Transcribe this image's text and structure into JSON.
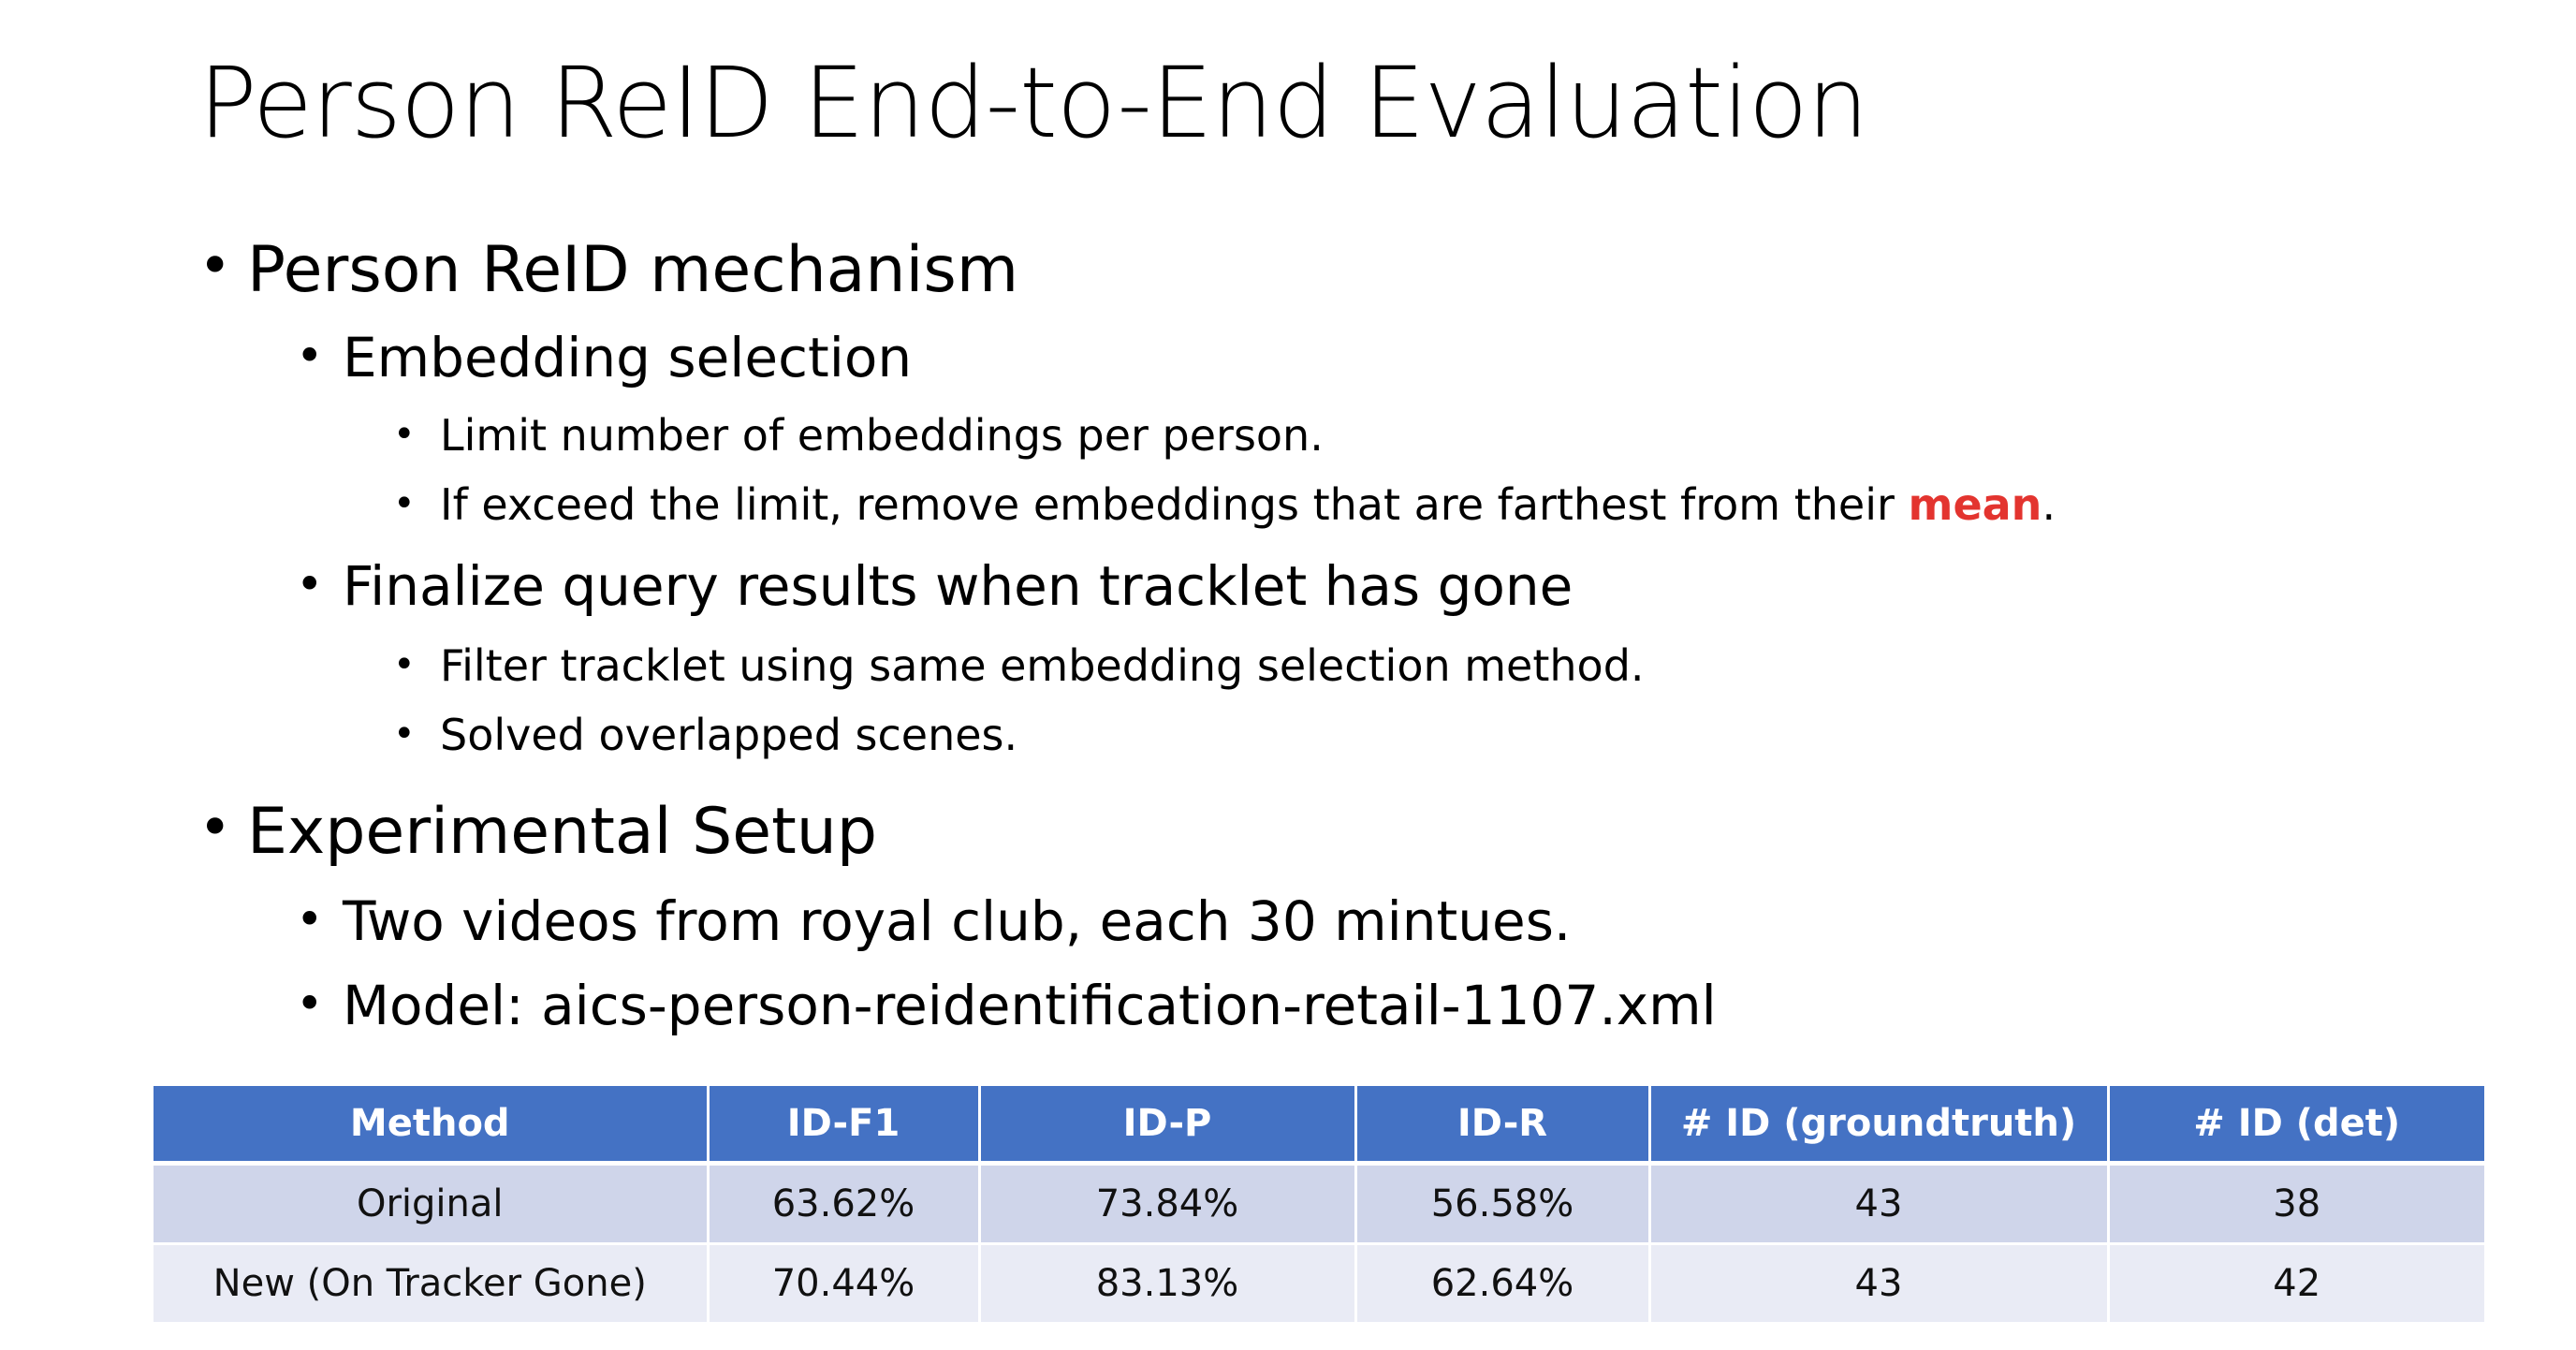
{
  "slide": {
    "title": "Person ReID End-to-End Evaluation",
    "bullets": {
      "reid_mechanism": {
        "label": "Person ReID mechanism",
        "embedding_selection": {
          "label": "Embedding selection",
          "items": [
            "Limit number of embeddings per person.",
            "If exceed the limit, remove embeddings that are farthest from their "
          ],
          "highlight_word": "mean",
          "highlight_suffix": ".",
          "highlight_color": "#e3342f"
        },
        "finalize": {
          "label": "Finalize query results when tracklet has gone",
          "items": [
            "Filter tracklet using same embedding selection method.",
            "Solved overlapped scenes."
          ]
        }
      },
      "experimental_setup": {
        "label": "Experimental Setup",
        "items": [
          "Two videos from royal club, each 30 mintues.",
          "Model: aics-person-reidentification-retail-1107.xml"
        ]
      }
    },
    "bullet_glyph": "•"
  },
  "table": {
    "header_color": "#4472c4",
    "row_colors": [
      "#cfd5ea",
      "#e9ebf5"
    ],
    "columns": [
      "Method",
      "ID-F1",
      "ID-P",
      "ID-R",
      "# ID (groundtruth)",
      "# ID (det)"
    ],
    "rows": [
      [
        "Original",
        "63.62%",
        "73.84%",
        "56.58%",
        "43",
        "38"
      ],
      [
        "New (On Tracker Gone)",
        "70.44%",
        "83.13%",
        "62.64%",
        "43",
        "42"
      ]
    ]
  }
}
